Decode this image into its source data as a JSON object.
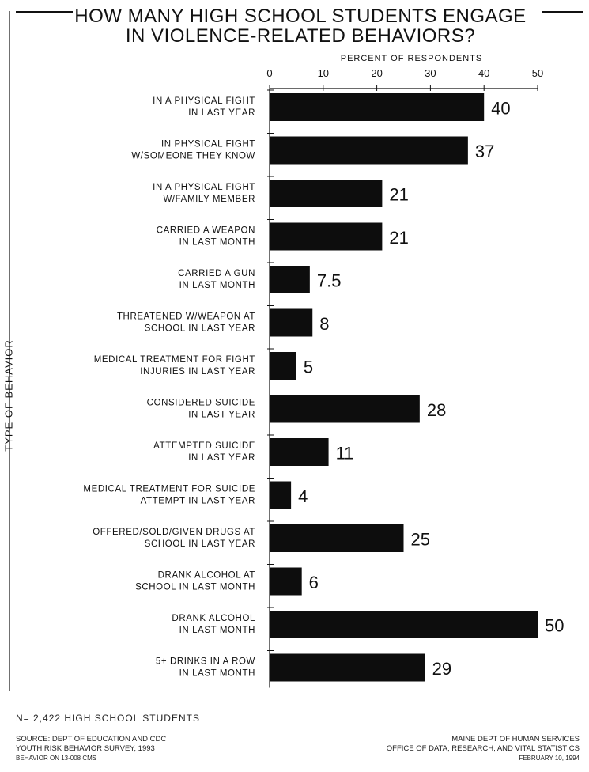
{
  "title_lines": [
    "HOW MANY HIGH SCHOOL STUDENTS ENGAGE",
    "IN VIOLENCE-RELATED BEHAVIORS?"
  ],
  "footer": {
    "note": "N= 2,422 HIGH SCHOOL STUDENTS",
    "source_lines": [
      "SOURCE: DEPT OF EDUCATION AND CDC",
      "YOUTH RISK BEHAVIOR SURVEY, 1993",
      "BEHAVIOR ON 13-008 CMS"
    ],
    "agency_lines": [
      "MAINE DEPT OF HUMAN SERVICES",
      "OFFICE OF DATA, RESEARCH, AND VITAL STATISTICS",
      "FEBRUARY 10, 1994"
    ]
  },
  "colors": {
    "bar": "#0d0d0d",
    "text": "#111111",
    "background": "#ffffff"
  },
  "chart_data": {
    "type": "bar",
    "orientation": "horizontal",
    "title": "HOW MANY HIGH SCHOOL STUDENTS ENGAGE IN VIOLENCE-RELATED BEHAVIORS?",
    "xlabel": "PERCENT OF RESPONDENTS",
    "ylabel": "TYPE OF BEHAVIOR",
    "xlim": [
      0,
      50
    ],
    "xticks": [
      0,
      10,
      20,
      30,
      40,
      50
    ],
    "grid": false,
    "data_labels": true,
    "categories": [
      [
        "IN A PHYSICAL FIGHT",
        "IN LAST YEAR"
      ],
      [
        "IN PHYSICAL FIGHT",
        "W/SOMEONE THEY KNOW"
      ],
      [
        "IN A PHYSICAL FIGHT",
        "W/FAMILY MEMBER"
      ],
      [
        "CARRIED A WEAPON",
        "IN LAST MONTH"
      ],
      [
        "CARRIED A GUN",
        "IN LAST MONTH"
      ],
      [
        "THREATENED W/WEAPON AT",
        "SCHOOL IN LAST YEAR"
      ],
      [
        "MEDICAL TREATMENT FOR FIGHT",
        "INJURIES IN LAST YEAR"
      ],
      [
        "CONSIDERED SUICIDE",
        "IN LAST YEAR"
      ],
      [
        "ATTEMPTED SUICIDE",
        "IN LAST YEAR"
      ],
      [
        "MEDICAL TREATMENT FOR SUICIDE",
        "ATTEMPT IN LAST YEAR"
      ],
      [
        "OFFERED/SOLD/GIVEN DRUGS AT",
        "SCHOOL IN LAST YEAR"
      ],
      [
        "DRANK ALCOHOL AT",
        "SCHOOL IN LAST MONTH"
      ],
      [
        "DRANK ALCOHOL",
        "IN LAST MONTH"
      ],
      [
        "5+ DRINKS IN A ROW",
        "IN LAST MONTH"
      ]
    ],
    "values": [
      40,
      37,
      21,
      21,
      7.5,
      8,
      5,
      28,
      11,
      4,
      25,
      6,
      50,
      29
    ],
    "value_labels": [
      "40",
      "37",
      "21",
      "21",
      "7.5",
      "8",
      "5",
      "28",
      "11",
      "4",
      "25",
      "6",
      "50",
      "29"
    ]
  }
}
